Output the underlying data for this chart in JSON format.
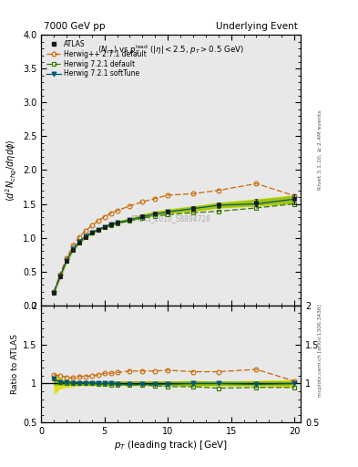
{
  "title_left": "7000 GeV pp",
  "title_right": "Underlying Event",
  "watermark": "ATLAS_2010_S8894728",
  "pt_atlas": [
    1.0,
    1.5,
    2.0,
    2.5,
    3.0,
    3.5,
    4.0,
    4.5,
    5.0,
    5.5,
    6.0,
    7.0,
    8.0,
    9.0,
    10.0,
    12.0,
    14.0,
    17.0,
    20.0
  ],
  "atlas_y": [
    0.18,
    0.42,
    0.65,
    0.82,
    0.93,
    1.01,
    1.07,
    1.12,
    1.16,
    1.2,
    1.23,
    1.27,
    1.32,
    1.36,
    1.39,
    1.43,
    1.48,
    1.52,
    1.57
  ],
  "atlas_yerr": [
    0.012,
    0.015,
    0.015,
    0.015,
    0.012,
    0.01,
    0.01,
    0.01,
    0.01,
    0.01,
    0.01,
    0.012,
    0.015,
    0.015,
    0.02,
    0.03,
    0.04,
    0.05,
    0.07
  ],
  "atlas_band_lo": [
    0.155,
    0.39,
    0.62,
    0.79,
    0.905,
    0.985,
    1.045,
    1.095,
    1.135,
    1.175,
    1.205,
    1.245,
    1.285,
    1.325,
    1.355,
    1.385,
    1.435,
    1.465,
    1.505
  ],
  "atlas_band_hi": [
    0.205,
    0.45,
    0.68,
    0.85,
    0.955,
    1.035,
    1.095,
    1.145,
    1.185,
    1.225,
    1.255,
    1.295,
    1.355,
    1.395,
    1.425,
    1.475,
    1.525,
    1.575,
    1.635
  ],
  "pt_herwig_pp": [
    1.0,
    1.5,
    2.0,
    2.5,
    3.0,
    3.5,
    4.0,
    4.5,
    5.0,
    5.5,
    6.0,
    7.0,
    8.0,
    9.0,
    10.0,
    12.0,
    14.0,
    17.0,
    20.0
  ],
  "herwig_pp_y": [
    0.2,
    0.46,
    0.7,
    0.88,
    1.01,
    1.1,
    1.18,
    1.25,
    1.31,
    1.36,
    1.4,
    1.47,
    1.53,
    1.58,
    1.63,
    1.65,
    1.7,
    1.8,
    1.62
  ],
  "pt_herwig721_def": [
    1.0,
    1.5,
    2.0,
    2.5,
    3.0,
    3.5,
    4.0,
    4.5,
    5.0,
    5.5,
    6.0,
    7.0,
    8.0,
    9.0,
    10.0,
    12.0,
    14.0,
    17.0,
    20.0
  ],
  "herwig721_def_y": [
    0.19,
    0.43,
    0.65,
    0.82,
    0.93,
    1.01,
    1.07,
    1.11,
    1.15,
    1.18,
    1.21,
    1.25,
    1.29,
    1.32,
    1.34,
    1.37,
    1.39,
    1.44,
    1.5
  ],
  "pt_herwig721_soft": [
    1.0,
    1.5,
    2.0,
    2.5,
    3.0,
    3.5,
    4.0,
    4.5,
    5.0,
    5.5,
    6.0,
    7.0,
    8.0,
    9.0,
    10.0,
    12.0,
    14.0,
    17.0,
    20.0
  ],
  "herwig721_soft_y": [
    0.19,
    0.43,
    0.66,
    0.83,
    0.94,
    1.02,
    1.08,
    1.12,
    1.16,
    1.2,
    1.22,
    1.26,
    1.31,
    1.35,
    1.38,
    1.43,
    1.48,
    1.5,
    1.57
  ],
  "ratio_herwig_pp": [
    1.11,
    1.1,
    1.08,
    1.07,
    1.09,
    1.09,
    1.1,
    1.11,
    1.13,
    1.13,
    1.14,
    1.16,
    1.16,
    1.16,
    1.17,
    1.15,
    1.15,
    1.18,
    1.03
  ],
  "ratio_herwig721_def": [
    1.06,
    1.02,
    1.0,
    1.0,
    1.0,
    1.0,
    1.0,
    0.99,
    0.99,
    0.98,
    0.98,
    0.98,
    0.98,
    0.97,
    0.96,
    0.96,
    0.94,
    0.95,
    0.95
  ],
  "ratio_herwig721_soft": [
    1.06,
    1.02,
    1.02,
    1.01,
    1.01,
    1.01,
    1.01,
    1.0,
    1.0,
    1.0,
    0.99,
    0.99,
    0.99,
    0.99,
    0.99,
    1.0,
    1.0,
    0.99,
    1.0
  ],
  "ratio_band_lo": [
    0.86,
    0.93,
    0.95,
    0.96,
    0.97,
    0.97,
    0.97,
    0.97,
    0.97,
    0.97,
    0.97,
    0.97,
    0.97,
    0.97,
    0.97,
    0.96,
    0.97,
    0.96,
    0.95
  ],
  "ratio_band_hi": [
    1.14,
    1.07,
    1.05,
    1.04,
    1.03,
    1.03,
    1.03,
    1.03,
    1.03,
    1.03,
    1.03,
    1.03,
    1.03,
    1.03,
    1.03,
    1.04,
    1.03,
    1.04,
    1.05
  ],
  "c_atlas": "#1a1a1a",
  "c_hpp": "#cc6600",
  "c_h721d": "#337700",
  "c_h721s": "#005577",
  "c_band_main_yellow": "#dddd00",
  "c_band_main_green": "#88bb00",
  "c_band_ratio_yellow": "#dddd00",
  "c_band_ratio_green": "#88bb00",
  "ylim_main": [
    0.0,
    4.0
  ],
  "ylim_ratio": [
    0.5,
    2.0
  ],
  "xlim": [
    0.5,
    20.5
  ],
  "xticks": [
    0,
    5,
    10,
    15,
    20
  ],
  "yticks_main": [
    0.0,
    0.5,
    1.0,
    1.5,
    2.0,
    2.5,
    3.0,
    3.5,
    4.0
  ],
  "yticks_ratio": [
    0.5,
    1.0,
    1.5,
    2.0
  ]
}
